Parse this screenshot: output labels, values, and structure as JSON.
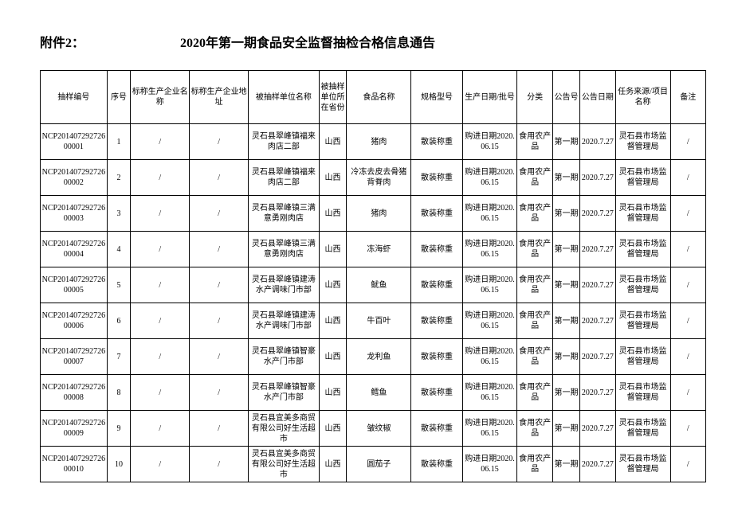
{
  "attachment_label": "附件2：",
  "title": "2020年第一期食品安全监督抽检合格信息通告",
  "columns": [
    "抽样编号",
    "序号",
    "标称生产企业名称",
    "标称生产企业地址",
    "被抽样单位名称",
    "被抽样单位所在省份",
    "食品名称",
    "规格型号",
    "生产日期/批号",
    "分类",
    "公告号",
    "公告日期",
    "任务来源/项目名称",
    "备注"
  ],
  "rows": [
    {
      "id": "NCP20140729272600001",
      "seq": "1",
      "ent": "/",
      "addr": "/",
      "unit": "灵石县翠峰镇福来肉店二部",
      "prov": "山西",
      "food": "猪肉",
      "spec": "散装称重",
      "date": "购进日期2020.06.15",
      "cat": "食用农产品",
      "no": "第一期",
      "pub": "2020.7.27",
      "src": "灵石县市场监督管理局",
      "rem": "/"
    },
    {
      "id": "NCP20140729272600002",
      "seq": "2",
      "ent": "/",
      "addr": "/",
      "unit": "灵石县翠峰镇福来肉店二部",
      "prov": "山西",
      "food": "冷冻去皮去骨猪背脊肉",
      "spec": "散装称重",
      "date": "购进日期2020.06.15",
      "cat": "食用农产品",
      "no": "第一期",
      "pub": "2020.7.27",
      "src": "灵石县市场监督管理局",
      "rem": "/"
    },
    {
      "id": "NCP20140729272600003",
      "seq": "3",
      "ent": "/",
      "addr": "/",
      "unit": "灵石县翠峰镇三满意勇刚肉店",
      "prov": "山西",
      "food": "猪肉",
      "spec": "散装称重",
      "date": "购进日期2020.06.15",
      "cat": "食用农产品",
      "no": "第一期",
      "pub": "2020.7.27",
      "src": "灵石县市场监督管理局",
      "rem": "/"
    },
    {
      "id": "NCP20140729272600004",
      "seq": "4",
      "ent": "/",
      "addr": "/",
      "unit": "灵石县翠峰镇三满意勇刚肉店",
      "prov": "山西",
      "food": "冻海虾",
      "spec": "散装称重",
      "date": "购进日期2020.06.15",
      "cat": "食用农产品",
      "no": "第一期",
      "pub": "2020.7.27",
      "src": "灵石县市场监督管理局",
      "rem": "/"
    },
    {
      "id": "NCP20140729272600005",
      "seq": "5",
      "ent": "/",
      "addr": "/",
      "unit": "灵石县翠峰镇建涛水产调味门市部",
      "prov": "山西",
      "food": "鱿鱼",
      "spec": "散装称重",
      "date": "购进日期2020.06.15",
      "cat": "食用农产品",
      "no": "第一期",
      "pub": "2020.7.27",
      "src": "灵石县市场监督管理局",
      "rem": "/"
    },
    {
      "id": "NCP20140729272600006",
      "seq": "6",
      "ent": "/",
      "addr": "/",
      "unit": "灵石县翠峰镇建涛水产调味门市部",
      "prov": "山西",
      "food": "牛百叶",
      "spec": "散装称重",
      "date": "购进日期2020.06.15",
      "cat": "食用农产品",
      "no": "第一期",
      "pub": "2020.7.27",
      "src": "灵石县市场监督管理局",
      "rem": "/"
    },
    {
      "id": "NCP20140729272600007",
      "seq": "7",
      "ent": "/",
      "addr": "/",
      "unit": "灵石县翠峰镇智豪水产门市部",
      "prov": "山西",
      "food": "龙利鱼",
      "spec": "散装称重",
      "date": "购进日期2020.06.15",
      "cat": "食用农产品",
      "no": "第一期",
      "pub": "2020.7.27",
      "src": "灵石县市场监督管理局",
      "rem": "/"
    },
    {
      "id": "NCP20140729272600008",
      "seq": "8",
      "ent": "/",
      "addr": "/",
      "unit": "灵石县翠峰镇智豪水产门市部",
      "prov": "山西",
      "food": "鳕鱼",
      "spec": "散装称重",
      "date": "购进日期2020.06.15",
      "cat": "食用农产品",
      "no": "第一期",
      "pub": "2020.7.27",
      "src": "灵石县市场监督管理局",
      "rem": "/"
    },
    {
      "id": "NCP20140729272600009",
      "seq": "9",
      "ent": "/",
      "addr": "/",
      "unit": "灵石县宜美多商贸有限公司好生活超市",
      "prov": "山西",
      "food": "皱纹椒",
      "spec": "散装称重",
      "date": "购进日期2020.06.15",
      "cat": "食用农产品",
      "no": "第一期",
      "pub": "2020.7.27",
      "src": "灵石县市场监督管理局",
      "rem": "/"
    },
    {
      "id": "NCP20140729272600010",
      "seq": "10",
      "ent": "/",
      "addr": "/",
      "unit": "灵石县宜美多商贸有限公司好生活超市",
      "prov": "山西",
      "food": "圆茄子",
      "spec": "散装称重",
      "date": "购进日期2020.06.15",
      "cat": "食用农产品",
      "no": "第一期",
      "pub": "2020.7.27",
      "src": "灵石县市场监督管理局",
      "rem": "/"
    }
  ]
}
